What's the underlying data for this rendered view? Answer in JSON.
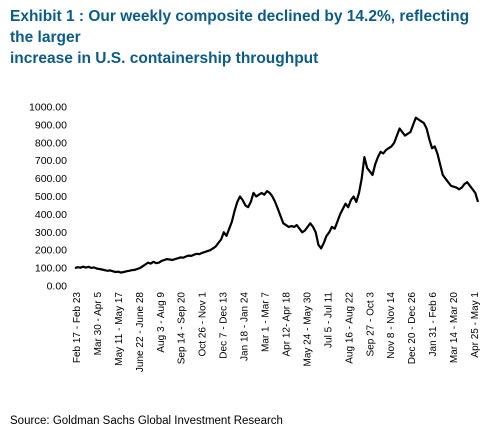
{
  "title_lines": [
    "Exhibit 1 : Our weekly composite declined by 14.2%, reflecting the larger",
    "increase in U.S. containership throughput"
  ],
  "source": "Source: Goldman Sachs Global Investment Research",
  "colors": {
    "title": "#0b5c8a",
    "line": "#000000"
  },
  "chart_data": {
    "type": "line",
    "title": "Exhibit 1 : Our weekly composite declined by 14.2%, reflecting the larger increase in U.S. containership throughput",
    "xlabel": "",
    "ylabel": "",
    "ylim": [
      0,
      1000
    ],
    "yticks": [
      "0.00",
      "100.00",
      "200.00",
      "300.00",
      "400.00",
      "500.00",
      "600.00",
      "700.00",
      "800.00",
      "900.00",
      "1000.00"
    ],
    "xticks": [
      "Feb 17 - Feb 23",
      "Mar 30 - Apr 5",
      "May 11 - May 17",
      "June 22 - June 28",
      "Aug 3 - Aug 9",
      "Sep 14 - Sep 20",
      "Oct 26 - Nov 1",
      "Dec 7 - Dec 13",
      "Jan 18 - Jan 24",
      "Mar 1 - Mar 7",
      "Apr 12- Apr 18",
      "May 24 - May 30",
      "Jul 5 - Jul 11",
      "Aug 16 - Aug 22",
      "Sep 27 - Oct 3",
      "Nov 8 - Nov 14",
      "Dec 20 - Dec 26",
      "Jan 31 - Feb 6",
      "Mar 14 - Mar 20",
      "Apr 25 - May 1"
    ],
    "grid": false,
    "legend": "none",
    "series": [
      {
        "values": [
          100,
          105,
          102,
          108,
          103,
          107,
          101,
          104,
          98,
          95,
          92,
          88,
          85,
          87,
          82,
          78,
          80,
          75,
          78,
          82,
          85,
          88,
          90,
          95,
          100,
          110,
          120,
          130,
          125,
          135,
          128,
          130,
          140,
          145,
          150,
          148,
          145,
          150,
          155,
          160,
          158,
          165,
          170,
          168,
          175,
          180,
          178,
          185,
          190,
          195,
          200,
          210,
          220,
          240,
          260,
          300,
          280,
          320,
          360,
          420,
          470,
          500,
          480,
          450,
          440,
          470,
          520,
          500,
          510,
          520,
          510,
          530,
          520,
          500,
          470,
          430,
          390,
          350,
          340,
          330,
          335,
          330,
          340,
          320,
          300,
          310,
          330,
          350,
          330,
          300,
          230,
          210,
          240,
          280,
          300,
          330,
          320,
          360,
          400,
          430,
          460,
          440,
          480,
          500,
          470,
          520,
          600,
          720,
          660,
          640,
          620,
          680,
          720,
          750,
          740,
          760,
          770,
          780,
          800,
          840,
          880,
          860,
          840,
          850,
          860,
          900,
          940,
          930,
          920,
          910,
          880,
          820,
          770,
          780,
          740,
          680,
          620,
          600,
          580,
          560,
          555,
          550,
          540,
          550,
          570,
          580,
          560,
          540,
          520,
          470
        ]
      }
    ]
  }
}
